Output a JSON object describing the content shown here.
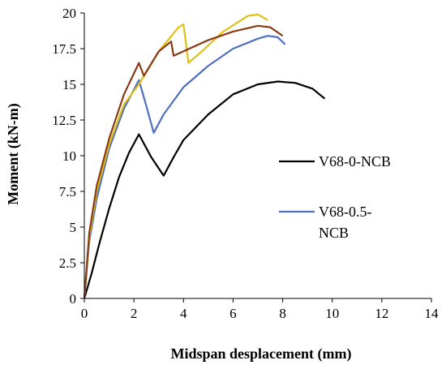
{
  "chart_data": {
    "type": "line",
    "title": "",
    "xlabel": "Midspan desplacement (mm)",
    "ylabel": "Moment (kN-m)",
    "xlim": [
      0,
      14
    ],
    "ylim": [
      0,
      20
    ],
    "x_ticks": [
      "0",
      "2",
      "4",
      "6",
      "8",
      "10",
      "12",
      "14"
    ],
    "y_ticks": [
      "0",
      "2.5",
      "5",
      "7.5",
      "10",
      "12.5",
      "15",
      "17.5",
      "20"
    ],
    "grid": false,
    "legend": {
      "placement": "right",
      "entries": [
        {
          "lines": [
            "V68-0-NCB"
          ],
          "series": 0
        },
        {
          "lines": [
            "V68-0.5-",
            "NCB"
          ],
          "series": 1
        }
      ]
    },
    "series": [
      {
        "name": "V68-0-NCB",
        "color": "#000000",
        "points": [
          [
            0,
            0
          ],
          [
            0.3,
            1.8
          ],
          [
            0.6,
            3.8
          ],
          [
            1.0,
            6.3
          ],
          [
            1.4,
            8.5
          ],
          [
            1.8,
            10.2
          ],
          [
            2.2,
            11.5
          ],
          [
            2.7,
            9.9
          ],
          [
            3.2,
            8.6
          ],
          [
            3.6,
            9.9
          ],
          [
            4.0,
            11.1
          ],
          [
            5.0,
            12.9
          ],
          [
            6.0,
            14.3
          ],
          [
            7.0,
            15.0
          ],
          [
            7.8,
            15.2
          ],
          [
            8.5,
            15.1
          ],
          [
            9.2,
            14.7
          ],
          [
            9.7,
            14.0
          ]
        ]
      },
      {
        "name": "V68-0.5-NCB",
        "color": "#4f6fc0",
        "points": [
          [
            0,
            0
          ],
          [
            0.2,
            4.0
          ],
          [
            0.5,
            7.0
          ],
          [
            1.0,
            10.5
          ],
          [
            1.6,
            13.3
          ],
          [
            2.2,
            15.3
          ],
          [
            2.5,
            13.5
          ],
          [
            2.8,
            11.6
          ],
          [
            3.2,
            12.9
          ],
          [
            4.0,
            14.8
          ],
          [
            5.0,
            16.3
          ],
          [
            6.0,
            17.5
          ],
          [
            7.0,
            18.2
          ],
          [
            7.4,
            18.4
          ],
          [
            7.8,
            18.3
          ],
          [
            8.1,
            17.8
          ]
        ]
      },
      {
        "color": "#e0c014",
        "points": [
          [
            0,
            0
          ],
          [
            0.2,
            4.3
          ],
          [
            0.5,
            7.5
          ],
          [
            1.0,
            10.8
          ],
          [
            1.6,
            13.6
          ],
          [
            2.2,
            15.0
          ],
          [
            3.0,
            17.3
          ],
          [
            3.8,
            19.0
          ],
          [
            4.0,
            19.2
          ],
          [
            4.2,
            16.5
          ],
          [
            4.8,
            17.4
          ],
          [
            5.6,
            18.7
          ],
          [
            6.6,
            19.8
          ],
          [
            7.0,
            19.9
          ],
          [
            7.4,
            19.5
          ]
        ]
      },
      {
        "color": "#8a3a14",
        "points": [
          [
            0,
            0
          ],
          [
            0.2,
            4.6
          ],
          [
            0.5,
            7.9
          ],
          [
            1.0,
            11.2
          ],
          [
            1.6,
            14.3
          ],
          [
            2.2,
            16.5
          ],
          [
            2.4,
            15.6
          ],
          [
            3.0,
            17.3
          ],
          [
            3.5,
            18.0
          ],
          [
            3.6,
            17.0
          ],
          [
            5.0,
            18.1
          ],
          [
            6.0,
            18.7
          ],
          [
            7.0,
            19.1
          ],
          [
            7.5,
            19.0
          ],
          [
            8.0,
            18.4
          ]
        ]
      }
    ]
  }
}
